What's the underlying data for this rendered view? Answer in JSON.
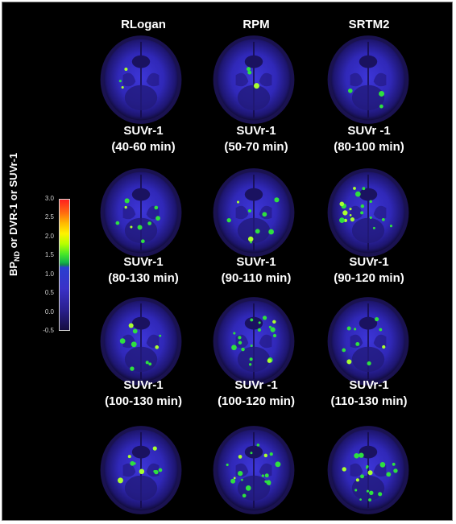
{
  "figure": {
    "background": "#000000",
    "rows": [
      [
        {
          "label_lines": [
            "RLogan"
          ],
          "intensity": "low"
        },
        {
          "label_lines": [
            "RPM"
          ],
          "intensity": "low"
        },
        {
          "label_lines": [
            "SRTM2"
          ],
          "intensity": "low"
        }
      ],
      [
        {
          "label_lines": [
            "SUVr-1",
            "(40-60 min)"
          ],
          "intensity": "medium"
        },
        {
          "label_lines": [
            "SUVr-1",
            "(50-70 min)"
          ],
          "intensity": "medium"
        },
        {
          "label_lines": [
            "SUVr -1",
            "(80-100 min)"
          ],
          "intensity": "high"
        }
      ],
      [
        {
          "label_lines": [
            "SUVr-1",
            "(80-130 min)"
          ],
          "intensity": "medium"
        },
        {
          "label_lines": [
            "SUVr-1",
            "(90-110 min)"
          ],
          "intensity": "high"
        },
        {
          "label_lines": [
            "SUVr-1",
            "(90-120 min)"
          ],
          "intensity": "medium"
        }
      ],
      [
        {
          "label_lines": [
            "SUVr-1",
            "(100-130 min)"
          ],
          "intensity": "medium"
        },
        {
          "label_lines": [
            "SUVr -1",
            "(100-120 min)"
          ],
          "intensity": "high"
        },
        {
          "label_lines": [
            "SUVr-1",
            "(110-130 min)"
          ],
          "intensity": "high"
        }
      ]
    ]
  },
  "colorbar": {
    "title_main": "BP",
    "title_sub": "ND",
    "title_rest": " or DVR-1 or SUVr-1",
    "ticks": [
      "3.0",
      "2.5",
      "2.0",
      "1.5",
      "1.0",
      "0.5",
      "0.0",
      "-0.5"
    ],
    "range": [
      -0.5,
      3.0
    ],
    "colormap": [
      "#160d40",
      "#2a2090",
      "#3a32c8",
      "#148a4a",
      "#46e628",
      "#fff200",
      "#ffb800",
      "#ff2020"
    ]
  }
}
